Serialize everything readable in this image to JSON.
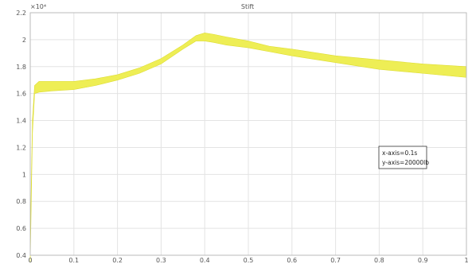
{
  "chart_data": {
    "type": "line",
    "title": "Stift",
    "exponent_label": "×10⁴",
    "xlim": [
      0,
      1
    ],
    "ylim": [
      0.4,
      2.2
    ],
    "x_ticks": [
      {
        "value": 0,
        "label": "0"
      },
      {
        "value": 0.1,
        "label": "0.1"
      },
      {
        "value": 0.2,
        "label": "0.2"
      },
      {
        "value": 0.3,
        "label": "0.3"
      },
      {
        "value": 0.4,
        "label": "0.4"
      },
      {
        "value": 0.5,
        "label": "0.5"
      },
      {
        "value": 0.6,
        "label": "0.6"
      },
      {
        "value": 0.7,
        "label": "0.7"
      },
      {
        "value": 0.8,
        "label": "0.8"
      },
      {
        "value": 0.9,
        "label": "0.9"
      },
      {
        "value": 1,
        "label": "1"
      }
    ],
    "y_ticks": [
      {
        "value": 0.4,
        "label": "0.4"
      },
      {
        "value": 0.6,
        "label": "0.6"
      },
      {
        "value": 0.8,
        "label": "0.8"
      },
      {
        "value": 1.0,
        "label": "1"
      },
      {
        "value": 1.2,
        "label": "1.2"
      },
      {
        "value": 1.4,
        "label": "1.4"
      },
      {
        "value": 1.6,
        "label": "1.6"
      },
      {
        "value": 1.8,
        "label": "1.8"
      },
      {
        "value": 2.0,
        "label": "2"
      },
      {
        "value": 2.2,
        "label": "2.2"
      }
    ],
    "grid": true,
    "series": [
      {
        "color": "#eeee55",
        "x": [
          0.0,
          0.005,
          0.01,
          0.02,
          0.05,
          0.1,
          0.15,
          0.2,
          0.25,
          0.3,
          0.35,
          0.38,
          0.4,
          0.42,
          0.45,
          0.5,
          0.55,
          0.6,
          0.7,
          0.8,
          0.9,
          1.0
        ],
        "upper": [
          0.5,
          1.4,
          1.66,
          1.69,
          1.69,
          1.69,
          1.71,
          1.74,
          1.79,
          1.86,
          1.96,
          2.03,
          2.05,
          2.04,
          2.02,
          1.99,
          1.95,
          1.93,
          1.88,
          1.85,
          1.82,
          1.8
        ],
        "lower": [
          0.35,
          1.3,
          1.6,
          1.61,
          1.62,
          1.63,
          1.66,
          1.7,
          1.75,
          1.82,
          1.93,
          1.99,
          1.99,
          1.98,
          1.96,
          1.94,
          1.91,
          1.88,
          1.83,
          1.78,
          1.75,
          1.72
        ]
      }
    ],
    "annotation": {
      "lines": [
        "x-axis=0.1s",
        "y-axis=20000lb"
      ]
    }
  }
}
